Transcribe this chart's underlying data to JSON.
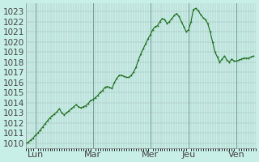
{
  "bg_color": "#c8eee8",
  "line_color": "#1a6b1a",
  "marker_color": "#1a6b1a",
  "grid_color": "#a0b8b0",
  "grid_color_major": "#7a9a94",
  "yticks": [
    1010,
    1011,
    1012,
    1013,
    1014,
    1015,
    1016,
    1017,
    1018,
    1019,
    1020,
    1021,
    1022,
    1023
  ],
  "ylim": [
    1009.5,
    1023.8
  ],
  "xlim": [
    0,
    96
  ],
  "xtick_positions": [
    4,
    28,
    52,
    68,
    88
  ],
  "xtick_labels": [
    "Lun",
    "Mar",
    "Mer",
    "Jeu",
    "Ven"
  ],
  "vline_positions": [
    4,
    28,
    52,
    68,
    88
  ],
  "ylabel_fontsize": 7.5,
  "xlabel_fontsize": 8,
  "data_y": [
    1010.0,
    1010.1,
    1010.3,
    1010.5,
    1010.8,
    1011.0,
    1011.3,
    1011.6,
    1011.9,
    1012.2,
    1012.5,
    1012.7,
    1012.9,
    1013.1,
    1013.4,
    1013.0,
    1012.8,
    1013.0,
    1013.2,
    1013.4,
    1013.6,
    1013.8,
    1013.6,
    1013.5,
    1013.6,
    1013.7,
    1013.9,
    1014.2,
    1014.3,
    1014.5,
    1014.7,
    1015.0,
    1015.2,
    1015.5,
    1015.6,
    1015.5,
    1015.4,
    1016.0,
    1016.4,
    1016.7,
    1016.7,
    1016.6,
    1016.5,
    1016.5,
    1016.7,
    1017.0,
    1017.5,
    1018.2,
    1018.8,
    1019.3,
    1019.8,
    1020.3,
    1020.7,
    1021.2,
    1021.5,
    1021.6,
    1022.0,
    1022.3,
    1022.2,
    1021.8,
    1022.0,
    1022.3,
    1022.6,
    1022.8,
    1022.5,
    1022.0,
    1021.5,
    1021.0,
    1021.2,
    1022.0,
    1023.2,
    1023.3,
    1023.1,
    1022.7,
    1022.4,
    1022.2,
    1021.8,
    1021.0,
    1020.0,
    1019.0,
    1018.5,
    1018.0,
    1018.3,
    1018.6,
    1018.2,
    1018.0,
    1018.3,
    1018.1,
    1018.1,
    1018.2,
    1018.3,
    1018.4,
    1018.4,
    1018.4,
    1018.5,
    1018.6
  ]
}
